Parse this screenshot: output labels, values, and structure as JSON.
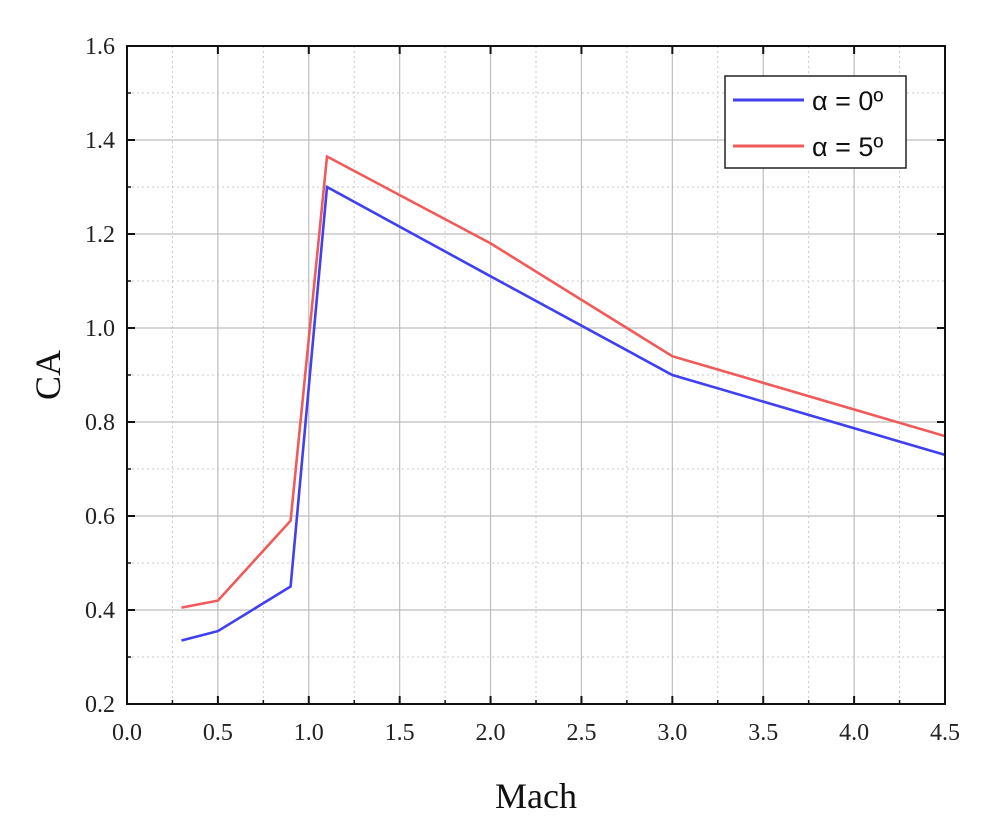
{
  "chart_data": {
    "type": "line",
    "title": "",
    "xlabel": "Mach",
    "ylabel": "CA",
    "xlim": [
      0.0,
      4.5
    ],
    "ylim": [
      0.2,
      1.6
    ],
    "xticks": [
      "0.0",
      "0.5",
      "1.0",
      "1.5",
      "2.0",
      "2.5",
      "3.0",
      "3.5",
      "4.0",
      "4.5"
    ],
    "yticks": [
      "0.2",
      "0.4",
      "0.6",
      "0.8",
      "1.0",
      "1.2",
      "1.4",
      "1.6"
    ],
    "grid": true,
    "legend_position": "top-right",
    "x": [
      0.3,
      0.5,
      0.9,
      1.1,
      2.0,
      3.0,
      4.5
    ],
    "series": [
      {
        "name": "α = 0º",
        "color": "#4040f0",
        "values": [
          0.335,
          0.355,
          0.45,
          1.3,
          1.11,
          0.9,
          0.73
        ]
      },
      {
        "name": "α = 5º",
        "color": "#f05a5a",
        "values": [
          0.405,
          0.42,
          0.59,
          1.365,
          1.18,
          0.94,
          0.77
        ]
      }
    ]
  }
}
